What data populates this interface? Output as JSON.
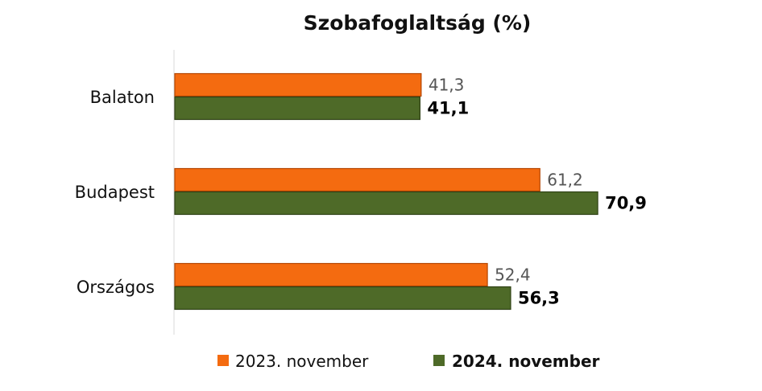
{
  "chart_data": {
    "type": "bar",
    "orientation": "horizontal",
    "title": "Szobafoglaltság (%)",
    "categories": [
      "Balaton",
      "Budapest",
      "Országos"
    ],
    "series": [
      {
        "name": "2023. november",
        "values": [
          41.3,
          61.2,
          52.4
        ],
        "labels": [
          "41,3",
          "61,2",
          "52,4"
        ],
        "color": "#f46b10"
      },
      {
        "name": "2024. november",
        "values": [
          41.1,
          70.9,
          56.3
        ],
        "labels": [
          "41,1",
          "70,9",
          "56,3"
        ],
        "color": "#4e6a28"
      }
    ],
    "xlim": [
      0,
      80
    ],
    "grid": false,
    "legend_position": "bottom"
  }
}
